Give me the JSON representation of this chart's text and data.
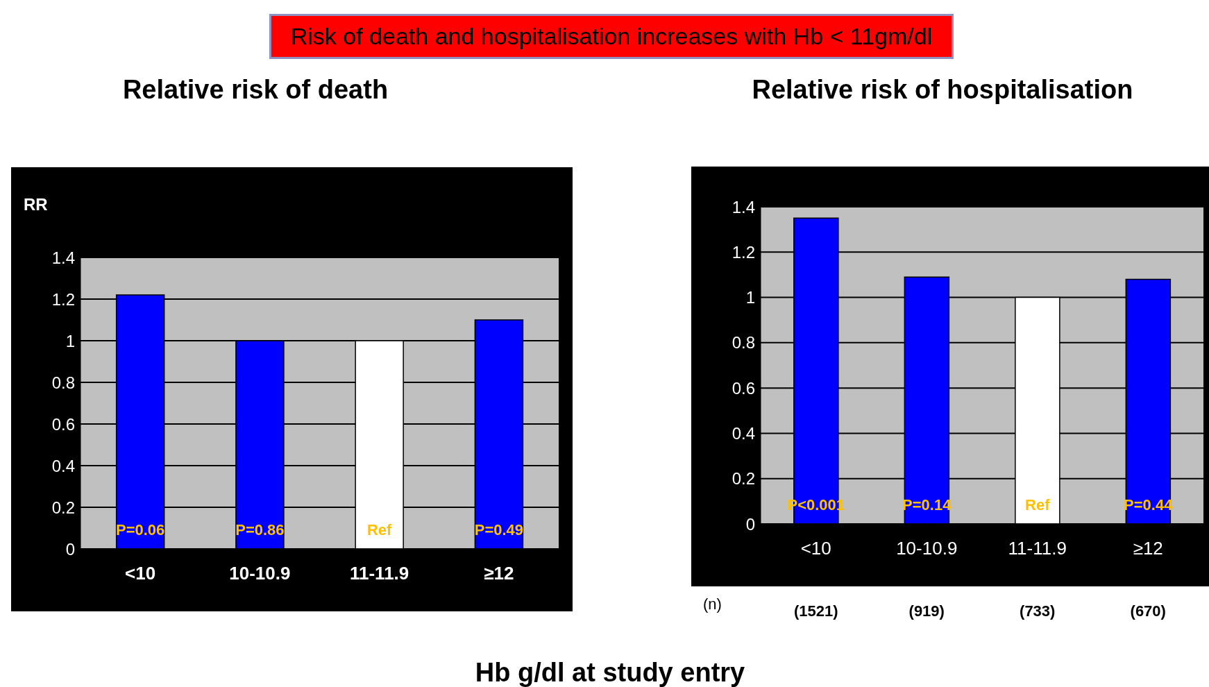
{
  "chart_data": [
    {
      "type": "bar",
      "title": "Relative risk of death",
      "ylabel": "RR",
      "xlabel": "Hb g/dl at study entry",
      "categories": [
        "<10",
        "10-10.9",
        "11-11.9",
        "≥12"
      ],
      "values": [
        1.22,
        1.0,
        1.0,
        1.1
      ],
      "colors": [
        "#0000ff",
        "#0000ff",
        "#ffffff",
        "#0000ff"
      ],
      "ylim": [
        0,
        1.4
      ],
      "yticks": [
        0,
        0.2,
        0.4,
        0.6,
        0.8,
        1,
        1.2,
        1.4
      ],
      "grid": "y",
      "annotations": [
        "Risk of death and hospitalisation increases with Hb < 11gm/dl",
        "P=0.06",
        "P=0.86",
        "Ref",
        "P=0.49"
      ]
    },
    {
      "type": "bar",
      "title": "Relative risk of hospitalisation",
      "categories": [
        "<10",
        "10-10.9",
        "11-11.9",
        "≥12"
      ],
      "values": [
        1.35,
        1.09,
        1.0,
        1.08
      ],
      "colors": [
        "#0000ff",
        "#0000ff",
        "#ffffff",
        "#0000ff"
      ],
      "ylim": [
        0,
        1.4
      ],
      "yticks": [
        0,
        0.2,
        0.4,
        0.6,
        0.8,
        1,
        1.2,
        1.4
      ],
      "grid": "y",
      "annotations": [
        "(n)",
        "(1521)",
        "(919)",
        "(733)",
        "(670)",
        "P<0.001",
        "P=0.14",
        "Ref",
        "P=0.44"
      ]
    }
  ]
}
